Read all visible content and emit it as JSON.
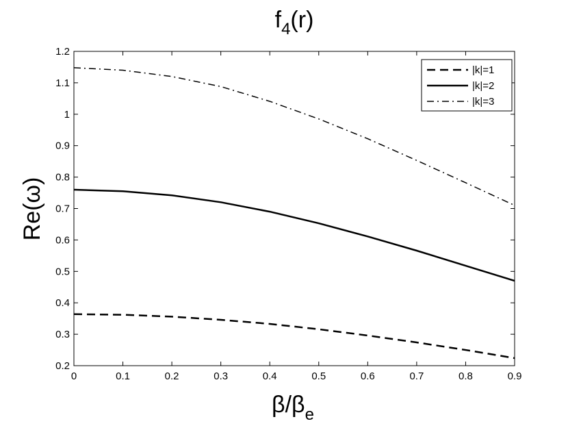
{
  "chart_data": {
    "type": "line",
    "title": {
      "main": "f",
      "sub": "4",
      "rest": "(r)"
    },
    "xlabel": {
      "main": "β/β",
      "sub": "e"
    },
    "ylabel": "Re(ω)",
    "xlim": [
      0,
      0.9
    ],
    "ylim": [
      0.2,
      1.2
    ],
    "xticks": [
      0,
      0.1,
      0.2,
      0.3,
      0.4,
      0.5,
      0.6,
      0.7,
      0.8,
      0.9
    ],
    "xtick_labels": [
      "0",
      "0.1",
      "0.2",
      "0.3",
      "0.4",
      "0.5",
      "0.6",
      "0.7",
      "0.8",
      "0.9"
    ],
    "yticks": [
      0.2,
      0.3,
      0.4,
      0.5,
      0.6,
      0.7,
      0.8,
      0.9,
      1.0,
      1.1,
      1.2
    ],
    "ytick_labels": [
      "0.2",
      "0.3",
      "0.4",
      "0.5",
      "0.6",
      "0.7",
      "0.8",
      "0.9",
      "1",
      "1.1",
      "1.2"
    ],
    "grid": false,
    "legend_position": "top-right",
    "x": [
      0,
      0.1,
      0.2,
      0.3,
      0.4,
      0.5,
      0.6,
      0.7,
      0.8,
      0.9
    ],
    "series": [
      {
        "name": "|k|=1",
        "style": "dashed",
        "color": "#000000",
        "values": [
          0.364,
          0.362,
          0.356,
          0.346,
          0.333,
          0.316,
          0.296,
          0.274,
          0.25,
          0.224
        ]
      },
      {
        "name": "|k|=2",
        "style": "solid",
        "color": "#000000",
        "values": [
          0.76,
          0.755,
          0.742,
          0.72,
          0.69,
          0.653,
          0.611,
          0.566,
          0.518,
          0.47
        ]
      },
      {
        "name": "|k|=3",
        "style": "dashdot",
        "color": "#000000",
        "values": [
          1.148,
          1.14,
          1.12,
          1.088,
          1.041,
          0.985,
          0.922,
          0.853,
          0.782,
          0.71
        ]
      }
    ]
  }
}
